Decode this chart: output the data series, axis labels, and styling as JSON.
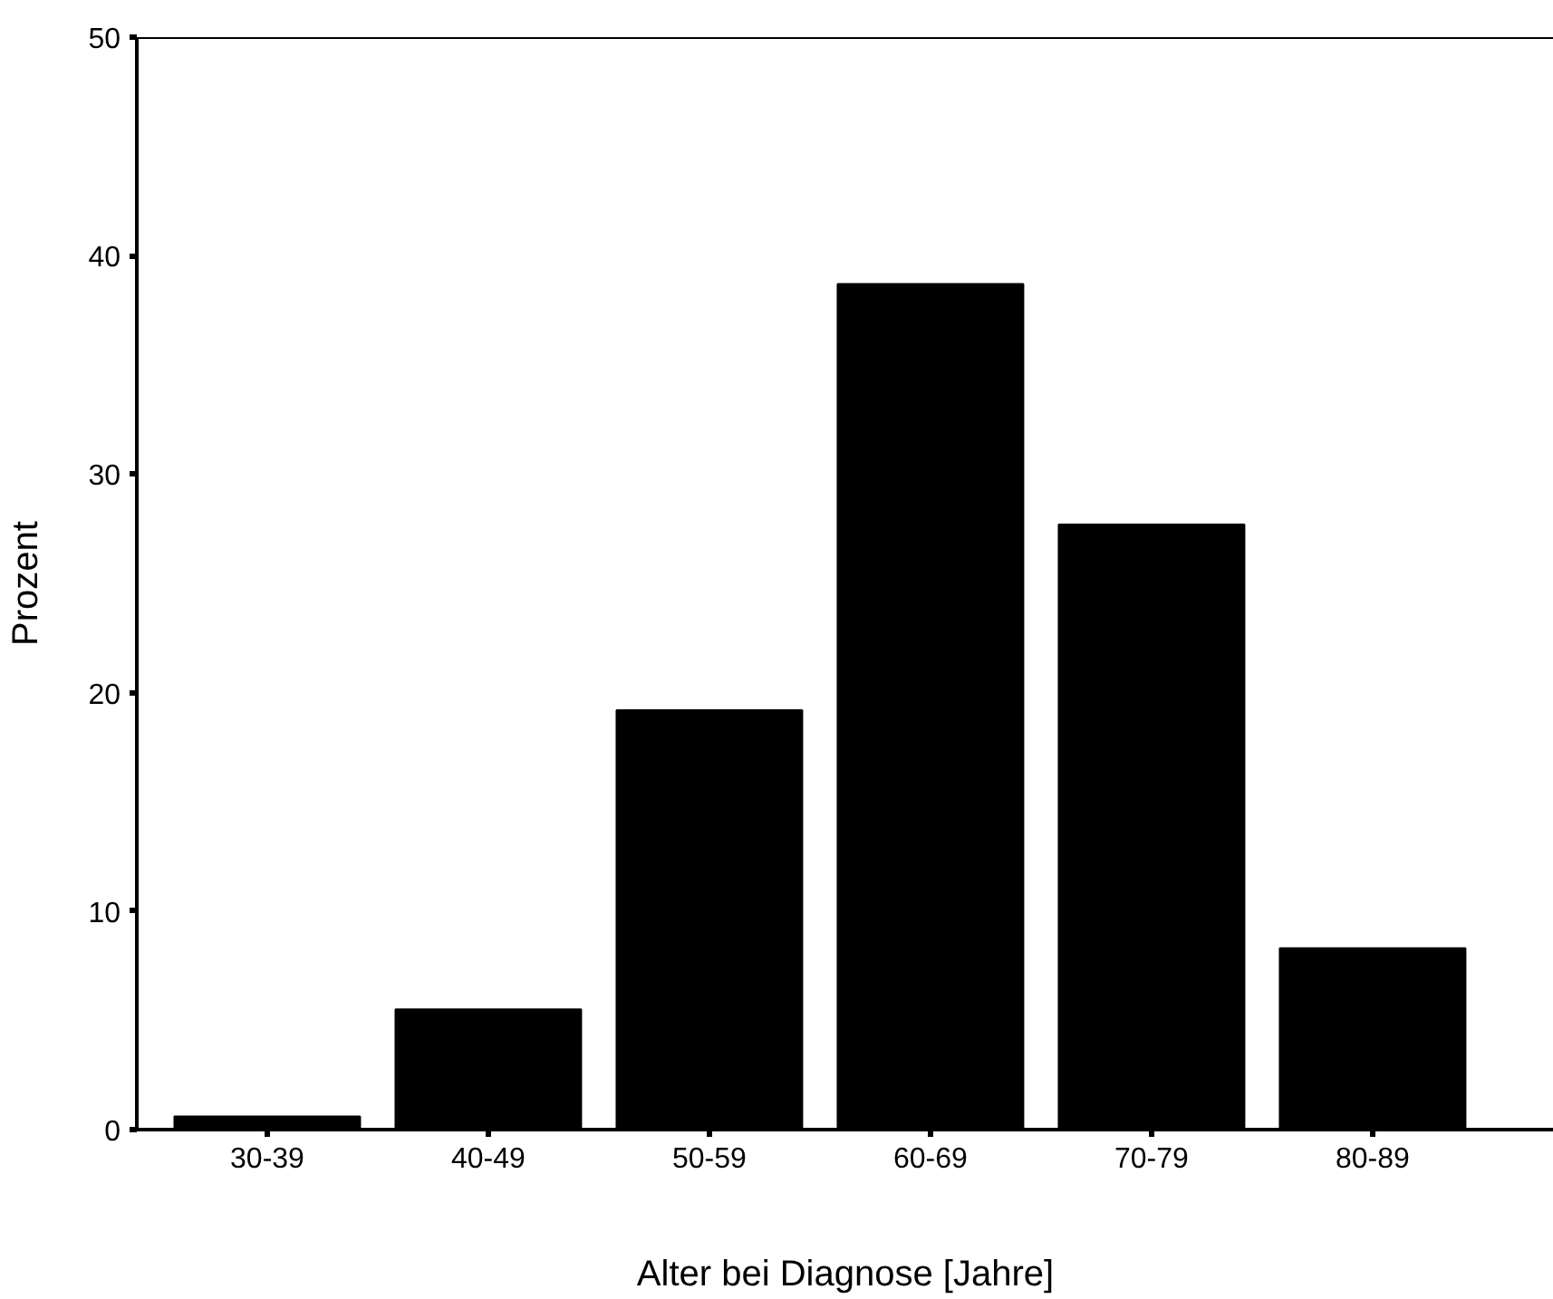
{
  "chart_data": {
    "type": "bar",
    "xlabel": "Alter bei Diagnose [Jahre]",
    "ylabel": "Prozent",
    "categories": [
      "30-39",
      "40-49",
      "50-59",
      "60-69",
      "70-79",
      "80-89"
    ],
    "values": [
      0.6,
      5.5,
      19.2,
      38.7,
      27.7,
      8.3
    ],
    "color": "#000000",
    "ylim": [
      0,
      50
    ],
    "yticks": [
      0,
      10,
      20,
      30,
      40,
      50
    ],
    "grid": false
  }
}
